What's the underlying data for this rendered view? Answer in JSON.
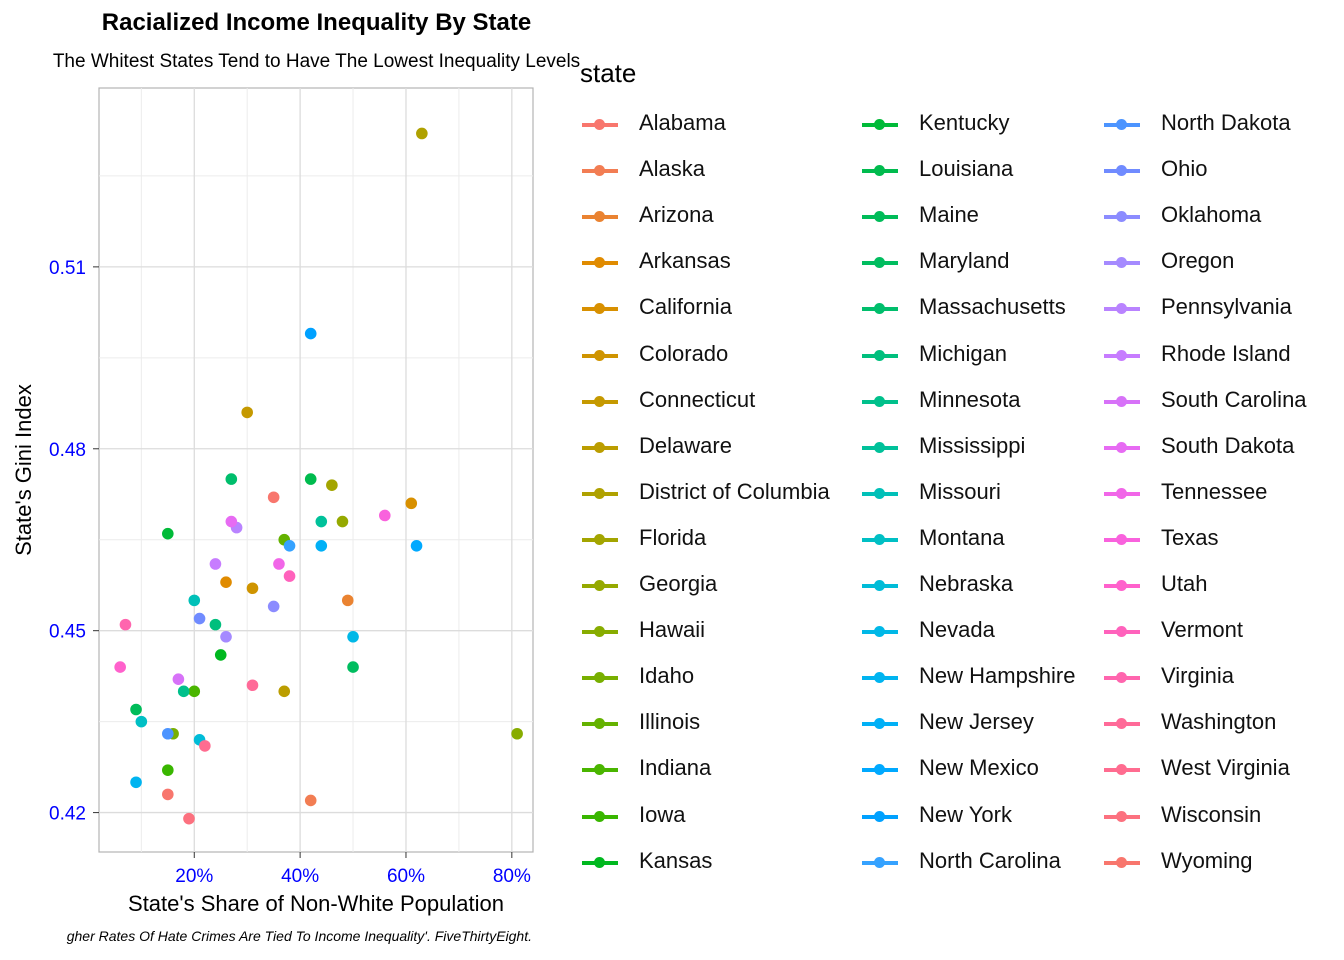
{
  "title": "Racialized Income Inequality By State",
  "subtitle": "The Whitest States Tend to Have The Lowest Inequality Levels",
  "caption": "gher Rates Of Hate Crimes Are Tied To Income Inequality'. FiveThirtyEight.",
  "legend_title": "state",
  "chart_data": {
    "type": "scatter",
    "title": "Racialized Income Inequality By State",
    "subtitle": "The Whitest States Tend to Have The Lowest Inequality Levels",
    "xlabel": "State's Share of Non-White Population",
    "ylabel": "State's Gini Index",
    "xlim": [
      0.02,
      0.84
    ],
    "ylim": [
      0.4135,
      0.5395
    ],
    "x_ticks": [
      0.2,
      0.4,
      0.6,
      0.8
    ],
    "x_tick_labels": [
      "20%",
      "40%",
      "60%",
      "80%"
    ],
    "y_ticks": [
      0.42,
      0.45,
      0.48,
      0.51
    ],
    "y_tick_labels": [
      "0.42",
      "0.45",
      "0.48",
      "0.51"
    ],
    "tick_label_color": "#0000ff",
    "grid": true,
    "legend_position": "right",
    "legend_columns": 3,
    "series": [
      {
        "name": "Alabama",
        "color": "#F8766D",
        "x": 0.35,
        "y": 0.472
      },
      {
        "name": "Alaska",
        "color": "#F27D53",
        "x": 0.42,
        "y": 0.422
      },
      {
        "name": "Arizona",
        "color": "#EA8331",
        "x": 0.49,
        "y": 0.455
      },
      {
        "name": "Arkansas",
        "color": "#E08B00",
        "x": 0.26,
        "y": 0.458
      },
      {
        "name": "California",
        "color": "#D89000",
        "x": 0.61,
        "y": 0.471
      },
      {
        "name": "Colorado",
        "color": "#CF9400",
        "x": 0.31,
        "y": 0.457
      },
      {
        "name": "Connecticut",
        "color": "#C59900",
        "x": 0.3,
        "y": 0.486
      },
      {
        "name": "Delaware",
        "color": "#BB9D00",
        "x": 0.37,
        "y": 0.44
      },
      {
        "name": "District of Columbia",
        "color": "#AFA100",
        "x": 0.63,
        "y": 0.532
      },
      {
        "name": "Florida",
        "color": "#A3A500",
        "x": 0.46,
        "y": 0.474
      },
      {
        "name": "Georgia",
        "color": "#95A900",
        "x": 0.48,
        "y": 0.468
      },
      {
        "name": "Hawaii",
        "color": "#87AC00",
        "x": 0.81,
        "y": 0.433
      },
      {
        "name": "Idaho",
        "color": "#78AF00",
        "x": 0.16,
        "y": 0.433
      },
      {
        "name": "Illinois",
        "color": "#64B200",
        "x": 0.37,
        "y": 0.465
      },
      {
        "name": "Indiana",
        "color": "#4AB500",
        "x": 0.2,
        "y": 0.44
      },
      {
        "name": "Iowa",
        "color": "#39B600",
        "x": 0.15,
        "y": 0.427
      },
      {
        "name": "Kansas",
        "color": "#00B81F",
        "x": 0.25,
        "y": 0.446
      },
      {
        "name": "Kentucky",
        "color": "#00BA38",
        "x": 0.15,
        "y": 0.466
      },
      {
        "name": "Louisiana",
        "color": "#00BB4E",
        "x": 0.42,
        "y": 0.475
      },
      {
        "name": "Maine",
        "color": "#00BC59",
        "x": 0.09,
        "y": 0.437
      },
      {
        "name": "Maryland",
        "color": "#00BD5F",
        "x": 0.5,
        "y": 0.444
      },
      {
        "name": "Massachusetts",
        "color": "#00BE6C",
        "x": 0.27,
        "y": 0.475
      },
      {
        "name": "Michigan",
        "color": "#00BF7D",
        "x": 0.24,
        "y": 0.451
      },
      {
        "name": "Minnesota",
        "color": "#00C08B",
        "x": 0.18,
        "y": 0.44
      },
      {
        "name": "Mississippi",
        "color": "#00C19A",
        "x": 0.44,
        "y": 0.468
      },
      {
        "name": "Missouri",
        "color": "#00C0B8",
        "x": 0.2,
        "y": 0.455
      },
      {
        "name": "Montana",
        "color": "#00BFC4",
        "x": 0.1,
        "y": 0.435
      },
      {
        "name": "Nebraska",
        "color": "#00BCD8",
        "x": 0.21,
        "y": 0.432
      },
      {
        "name": "Nevada",
        "color": "#00B8E7",
        "x": 0.5,
        "y": 0.449
      },
      {
        "name": "New Hampshire",
        "color": "#00B4F0",
        "x": 0.09,
        "y": 0.425
      },
      {
        "name": "New Jersey",
        "color": "#00B0F6",
        "x": 0.44,
        "y": 0.464
      },
      {
        "name": "New Mexico",
        "color": "#00A9FF",
        "x": 0.62,
        "y": 0.464
      },
      {
        "name": "New York",
        "color": "#00A1FF",
        "x": 0.42,
        "y": 0.499
      },
      {
        "name": "North Carolina",
        "color": "#35A2FF",
        "x": 0.38,
        "y": 0.464
      },
      {
        "name": "North Dakota",
        "color": "#4C94FF",
        "x": 0.15,
        "y": 0.433
      },
      {
        "name": "Ohio",
        "color": "#708BFF",
        "x": 0.21,
        "y": 0.452
      },
      {
        "name": "Oklahoma",
        "color": "#8C8CFF",
        "x": 0.35,
        "y": 0.454
      },
      {
        "name": "Oregon",
        "color": "#A58AFF",
        "x": 0.26,
        "y": 0.449
      },
      {
        "name": "Pennsylvania",
        "color": "#B983FF",
        "x": 0.28,
        "y": 0.467
      },
      {
        "name": "Rhode Island",
        "color": "#C77CFF",
        "x": 0.24,
        "y": 0.461
      },
      {
        "name": "South Carolina",
        "color": "#D772F8",
        "x": 0.17,
        "y": 0.442
      },
      {
        "name": "South Dakota",
        "color": "#E76BF3",
        "x": 0.27,
        "y": 0.468
      },
      {
        "name": "Tennessee",
        "color": "#F166E8",
        "x": 0.36,
        "y": 0.461
      },
      {
        "name": "Texas",
        "color": "#F962DD",
        "x": 0.56,
        "y": 0.469
      },
      {
        "name": "Utah",
        "color": "#FF61CC",
        "x": 0.06,
        "y": 0.444
      },
      {
        "name": "Vermont",
        "color": "#FF62BC",
        "x": 0.38,
        "y": 0.459
      },
      {
        "name": "Virginia",
        "color": "#FF65AE",
        "x": 0.07,
        "y": 0.451
      },
      {
        "name": "Washington",
        "color": "#FF6A98",
        "x": 0.31,
        "y": 0.441
      },
      {
        "name": "West Virginia",
        "color": "#FF6C90",
        "x": 0.22,
        "y": 0.431
      },
      {
        "name": "Wisconsin",
        "color": "#FC717F",
        "x": 0.19,
        "y": 0.419
      },
      {
        "name": "Wyoming",
        "color": "#F8766D",
        "x": 0.15,
        "y": 0.423
      }
    ]
  }
}
